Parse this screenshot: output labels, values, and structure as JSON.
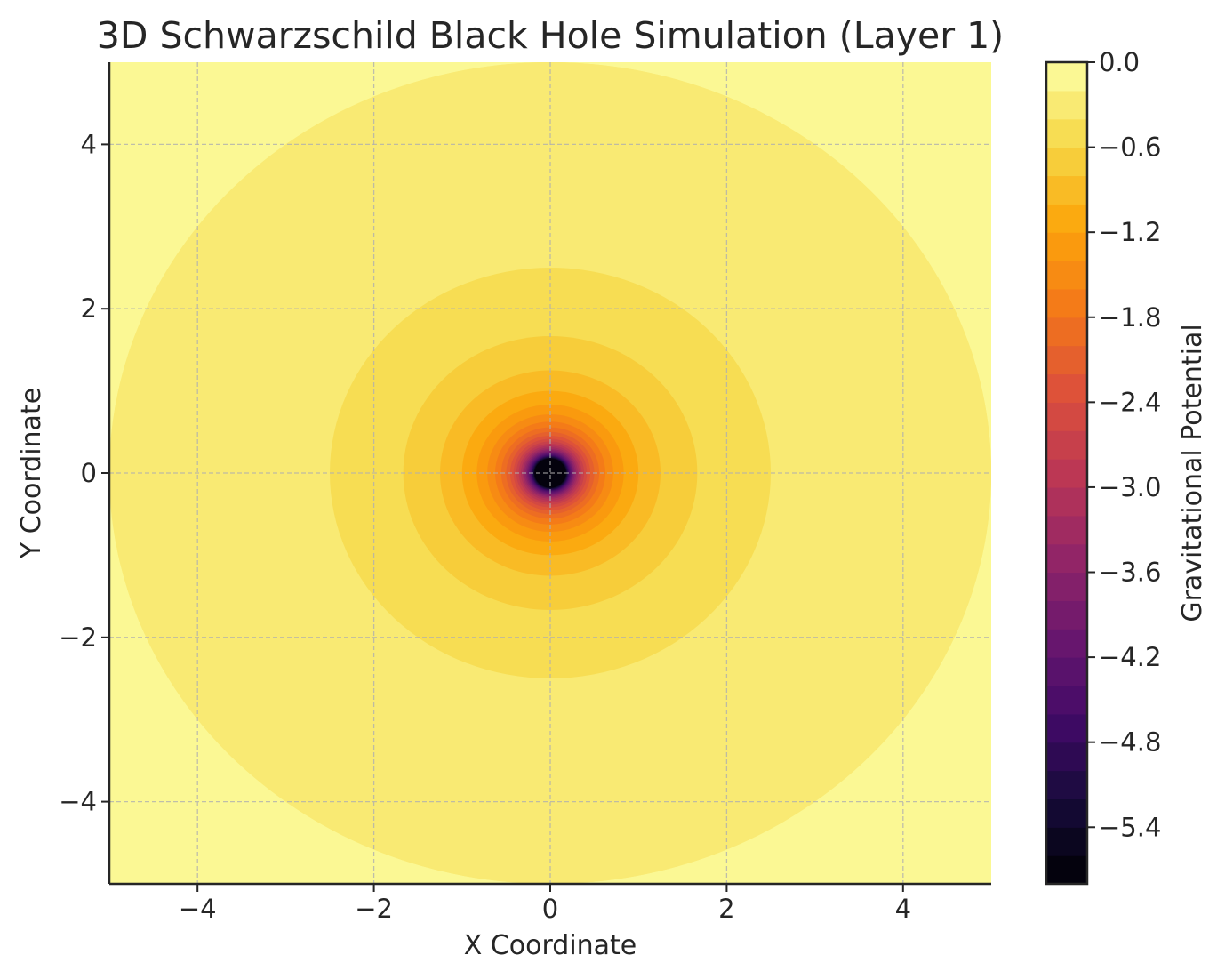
{
  "chart_data": {
    "type": "heatmap",
    "title": "3D Schwarzschild Black Hole Simulation (Layer 1)",
    "xlabel": "X Coordinate",
    "ylabel": "Y Coordinate",
    "xlim": [
      -5,
      5
    ],
    "ylim": [
      -5,
      5
    ],
    "xticks": [
      -4,
      -2,
      0,
      2,
      4
    ],
    "yticks": [
      -4,
      -2,
      0,
      2,
      4
    ],
    "xtick_labels": [
      "−4",
      "−2",
      "0",
      "2",
      "4"
    ],
    "ytick_labels": [
      "−4",
      "−2",
      "0",
      "2",
      "4"
    ],
    "grid": true,
    "colormap": "inferno",
    "function": "-1/r",
    "colorbar": {
      "label": "Gravitational Potential",
      "vmin": -5.8,
      "vmax": 0.0,
      "level_step": 0.2,
      "ticks": [
        0.0,
        -0.6,
        -1.2,
        -1.8,
        -2.4,
        -3.0,
        -3.6,
        -4.2,
        -4.8,
        -5.4
      ],
      "tick_labels": [
        "0.0",
        "−0.6",
        "−1.2",
        "−1.8",
        "−2.4",
        "−3.0",
        "−3.6",
        "−4.2",
        "−4.8",
        "−5.4"
      ]
    },
    "contour_levels": [
      {
        "potential": -0.2,
        "radius": 5.0
      },
      {
        "potential": -0.4,
        "radius": 2.5
      },
      {
        "potential": -0.6,
        "radius": 1.67
      },
      {
        "potential": -0.8,
        "radius": 1.25
      },
      {
        "potential": -1.0,
        "radius": 1.0
      }
    ]
  }
}
